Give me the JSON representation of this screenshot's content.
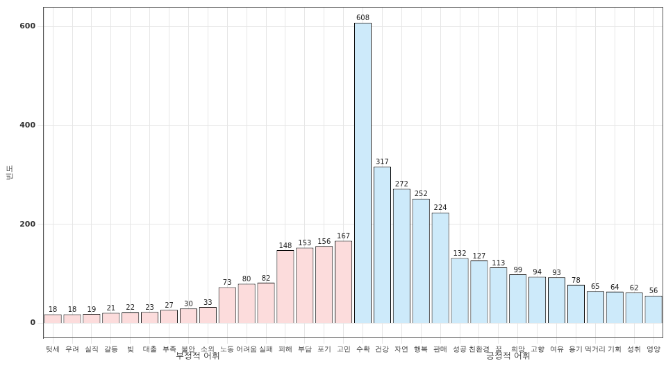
{
  "chart_data": {
    "type": "bar",
    "y_label": "빈도",
    "annotations": [
      "부정적 어휘",
      "긍정적 어휘"
    ],
    "categories": [
      "텃세",
      "우려",
      "실직",
      "갈등",
      "빚",
      "대출",
      "부족",
      "불안",
      "소외",
      "노동",
      "어려움",
      "실패",
      "피해",
      "부담",
      "포기",
      "고민",
      "수확",
      "건강",
      "자연",
      "행복",
      "판매",
      "성공",
      "친환경",
      "꿈",
      "희망",
      "고향",
      "여유",
      "용기",
      "먹거리",
      "기회",
      "성취",
      "영양"
    ],
    "values": [
      18,
      18,
      19,
      21,
      22,
      23,
      27,
      30,
      33,
      73,
      80,
      82,
      148,
      153,
      156,
      167,
      608,
      317,
      272,
      252,
      224,
      132,
      127,
      113,
      99,
      94,
      93,
      78,
      65,
      64,
      62,
      56
    ],
    "colors": [
      "#fcdcdc",
      "#fcdcdc",
      "#fcdcdc",
      "#fcdcdc",
      "#fcdcdc",
      "#fcdcdc",
      "#fcdcdc",
      "#fcdcdc",
      "#fcdcdc",
      "#fcdcdc",
      "#fcdcdc",
      "#fcdcdc",
      "#fcdcdc",
      "#fcdcdc",
      "#fcdcdc",
      "#fcdcdc",
      "#cdeafa",
      "#cdeafa",
      "#cdeafa",
      "#cdeafa",
      "#cdeafa",
      "#cdeafa",
      "#cdeafa",
      "#cdeafa",
      "#cdeafa",
      "#cdeafa",
      "#cdeafa",
      "#cdeafa",
      "#cdeafa",
      "#cdeafa",
      "#cdeafa",
      "#cdeafa"
    ],
    "ylim": [
      -30,
      640
    ],
    "yticks": [
      0,
      200,
      400,
      600
    ],
    "grid": true,
    "data_labels": true
  }
}
